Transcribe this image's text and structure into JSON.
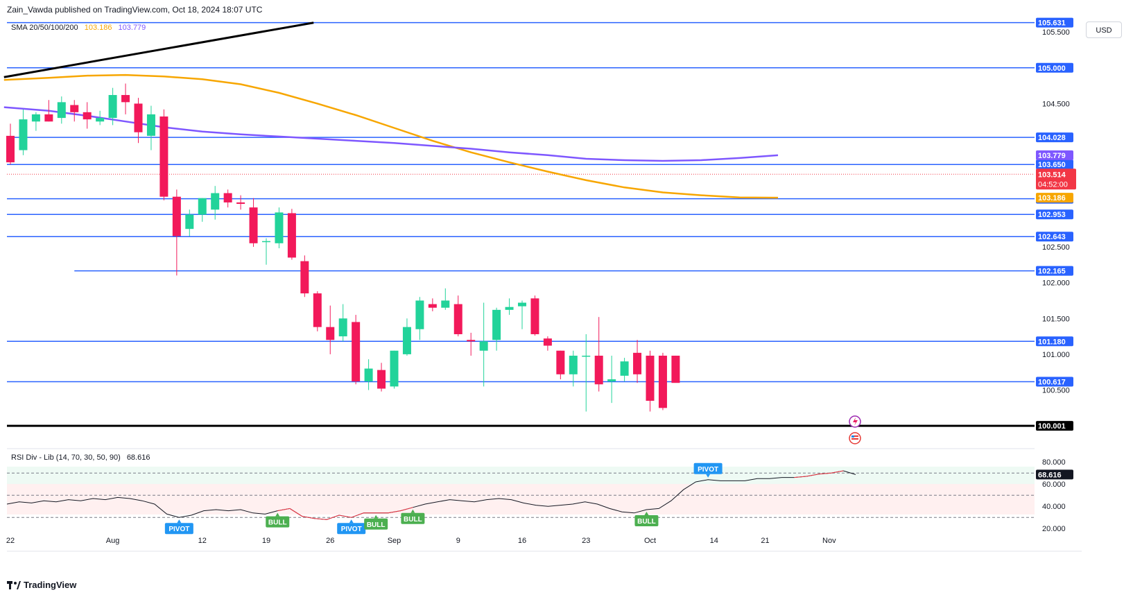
{
  "header": {
    "author": "Zain_Vawda",
    "published_text": "published on TradingView.com, Oct 18, 2024 18:07 UTC"
  },
  "currency_button": "USD",
  "sma_legend": {
    "label": "SMA 20/50/100/200",
    "value1": "103.186",
    "value2": "103.779",
    "color1": "#f7a600",
    "color2": "#7e57ff"
  },
  "rsi_legend": {
    "label": "RSI Div - Lib (14, 70, 30, 50, 90)",
    "value": "68.616"
  },
  "footer": {
    "brand": "TradingView"
  },
  "chart_data": [
    {
      "type": "candlestick",
      "title": "",
      "ylim": [
        99.75,
        105.85
      ],
      "x_tick_labels": [
        {
          "i": 0,
          "label": "22"
        },
        {
          "i": 8,
          "label": "Aug"
        },
        {
          "i": 15,
          "label": "12"
        },
        {
          "i": 20,
          "label": "19"
        },
        {
          "i": 25,
          "label": "26"
        },
        {
          "i": 30,
          "label": "Sep"
        },
        {
          "i": 35,
          "label": "9"
        },
        {
          "i": 40,
          "label": "16"
        },
        {
          "i": 45,
          "label": "23"
        },
        {
          "i": 50,
          "label": "Oct"
        },
        {
          "i": 55,
          "label": "14"
        },
        {
          "i": 59,
          "label": "21"
        },
        {
          "i": 64,
          "label": "Nov"
        }
      ],
      "y_tick_labels": [
        "105.500",
        "104.500",
        "102.500",
        "102.000",
        "101.500",
        "101.000",
        "100.500"
      ],
      "y_ticks": [
        105.5,
        104.5,
        102.5,
        102.0,
        101.5,
        101.0,
        100.5
      ],
      "horizontal_levels": [
        {
          "price": 105.631,
          "label": "105.631"
        },
        {
          "price": 105.0,
          "label": "105.000"
        },
        {
          "price": 104.028,
          "label": "104.028"
        },
        {
          "price": 103.65,
          "label": "103.650"
        },
        {
          "price": 103.172,
          "label": "103.172"
        },
        {
          "price": 102.953,
          "label": "102.953"
        },
        {
          "price": 102.643,
          "label": "102.643"
        },
        {
          "price": 102.165,
          "label": "102.165",
          "start_i": 5
        },
        {
          "price": 101.18,
          "label": "101.180"
        },
        {
          "price": 100.617,
          "label": "100.617"
        },
        {
          "price": 100.001,
          "label": "100.001",
          "heavy": true
        }
      ],
      "current_price": {
        "price": 103.514,
        "label": "103.514",
        "countdown": "04:52:00",
        "color": "#f23645"
      },
      "sma_labels": [
        {
          "price": 103.779,
          "label": "103.779",
          "color": "#7e57ff"
        },
        {
          "price": 103.186,
          "label": "103.186",
          "color": "#f7a600"
        }
      ],
      "trendline": {
        "from": [
          -0.5,
          104.87
        ],
        "to": [
          23.7,
          105.63
        ],
        "color": "#000000"
      },
      "sma_purple": [
        [
          -0.5,
          104.45
        ],
        [
          3,
          104.4
        ],
        [
          6,
          104.33
        ],
        [
          9,
          104.25
        ],
        [
          12,
          104.17
        ],
        [
          15,
          104.11
        ],
        [
          18,
          104.07
        ],
        [
          21,
          104.04
        ],
        [
          24,
          104.01
        ],
        [
          27,
          103.98
        ],
        [
          30,
          103.95
        ],
        [
          33,
          103.91
        ],
        [
          36,
          103.87
        ],
        [
          39,
          103.82
        ],
        [
          42,
          103.78
        ],
        [
          45,
          103.73
        ],
        [
          48,
          103.71
        ],
        [
          51,
          103.7
        ],
        [
          54,
          103.71
        ],
        [
          57,
          103.74
        ],
        [
          60,
          103.779
        ]
      ],
      "sma_orange": [
        [
          -0.5,
          104.83
        ],
        [
          3,
          104.86
        ],
        [
          6,
          104.89
        ],
        [
          9,
          104.9
        ],
        [
          12,
          104.88
        ],
        [
          15,
          104.84
        ],
        [
          18,
          104.77
        ],
        [
          21,
          104.65
        ],
        [
          24,
          104.5
        ],
        [
          27,
          104.34
        ],
        [
          30,
          104.16
        ],
        [
          33,
          103.98
        ],
        [
          36,
          103.82
        ],
        [
          39,
          103.68
        ],
        [
          42,
          103.55
        ],
        [
          45,
          103.43
        ],
        [
          48,
          103.33
        ],
        [
          51,
          103.26
        ],
        [
          54,
          103.22
        ],
        [
          57,
          103.19
        ],
        [
          60,
          103.186
        ]
      ],
      "candles": [
        [
          104.05,
          104.22,
          103.65,
          103.68
        ],
        [
          103.85,
          104.42,
          103.78,
          104.28
        ],
        [
          104.25,
          104.38,
          104.12,
          104.35
        ],
        [
          104.35,
          104.55,
          104.25,
          104.25
        ],
        [
          104.3,
          104.6,
          104.22,
          104.52
        ],
        [
          104.48,
          104.55,
          104.25,
          104.38
        ],
        [
          104.38,
          104.52,
          104.15,
          104.28
        ],
        [
          104.25,
          104.4,
          104.2,
          104.3
        ],
        [
          104.3,
          104.72,
          104.2,
          104.62
        ],
        [
          104.62,
          104.78,
          104.35,
          104.52
        ],
        [
          104.5,
          104.58,
          103.95,
          104.1
        ],
        [
          104.05,
          104.47,
          103.85,
          104.35
        ],
        [
          104.32,
          104.42,
          103.15,
          103.2
        ],
        [
          103.2,
          103.3,
          102.1,
          102.65
        ],
        [
          102.75,
          103.02,
          102.65,
          102.95
        ],
        [
          102.95,
          103.18,
          102.85,
          103.18
        ],
        [
          103.02,
          103.35,
          102.88,
          103.25
        ],
        [
          103.25,
          103.3,
          103.05,
          103.12
        ],
        [
          103.12,
          103.22,
          103.02,
          103.1
        ],
        [
          103.05,
          103.18,
          102.5,
          102.55
        ],
        [
          102.58,
          102.62,
          102.25,
          102.58
        ],
        [
          102.55,
          103.05,
          102.48,
          102.98
        ],
        [
          102.97,
          103.03,
          102.32,
          102.35
        ],
        [
          102.3,
          102.38,
          101.8,
          101.85
        ],
        [
          101.85,
          101.88,
          101.32,
          101.38
        ],
        [
          101.38,
          101.68,
          101.0,
          101.2
        ],
        [
          101.25,
          101.7,
          101.18,
          101.5
        ],
        [
          101.45,
          101.55,
          100.58,
          100.62
        ],
        [
          100.62,
          100.93,
          100.5,
          100.8
        ],
        [
          100.78,
          100.88,
          100.48,
          100.52
        ],
        [
          100.55,
          101.05,
          100.52,
          101.05
        ],
        [
          101.0,
          101.5,
          100.98,
          101.38
        ],
        [
          101.35,
          101.8,
          101.2,
          101.75
        ],
        [
          101.7,
          101.78,
          101.6,
          101.65
        ],
        [
          101.65,
          101.92,
          101.62,
          101.75
        ],
        [
          101.7,
          101.82,
          101.25,
          101.28
        ],
        [
          101.2,
          101.3,
          100.98,
          101.18
        ],
        [
          101.05,
          101.72,
          100.55,
          101.18
        ],
        [
          101.2,
          101.65,
          101.05,
          101.62
        ],
        [
          101.62,
          101.78,
          101.55,
          101.66
        ],
        [
          101.67,
          101.75,
          101.35,
          101.72
        ],
        [
          101.78,
          101.82,
          101.26,
          101.28
        ],
        [
          101.22,
          101.25,
          101.05,
          101.12
        ],
        [
          101.05,
          101.05,
          100.65,
          100.72
        ],
        [
          100.72,
          101.05,
          100.55,
          100.98
        ],
        [
          100.98,
          101.28,
          100.2,
          100.98
        ],
        [
          100.98,
          101.52,
          100.48,
          100.58
        ],
        [
          100.62,
          100.98,
          100.32,
          100.65
        ],
        [
          100.7,
          100.95,
          100.62,
          100.9
        ],
        [
          101.02,
          101.2,
          100.6,
          100.72
        ],
        [
          100.98,
          101.05,
          100.2,
          100.35
        ],
        [
          100.98,
          101.02,
          100.22,
          100.25
        ],
        [
          100.98,
          100.98,
          100.62,
          100.6
        ]
      ]
    },
    {
      "type": "line",
      "title": "RSI",
      "ylim": [
        12.0,
        87.0
      ],
      "y_tick_labels": [
        "80.000",
        "60.000",
        "40.000",
        "20.000"
      ],
      "y_ticks": [
        80.0,
        60.0,
        40.0,
        20.0
      ],
      "bands": [
        {
          "value": 70,
          "label": ""
        },
        {
          "value": 50,
          "label": ""
        },
        {
          "value": 30,
          "label": ""
        }
      ],
      "current": {
        "value": 68.616,
        "label": "68.616"
      },
      "series": [
        {
          "name": "",
          "values": [
            42,
            44,
            43,
            45,
            44,
            46,
            45,
            47,
            46,
            48,
            47,
            45,
            42,
            33,
            30,
            32,
            36,
            37,
            36,
            37,
            34,
            33,
            36,
            38,
            31,
            29,
            28,
            32,
            30,
            34,
            34,
            34,
            36,
            39,
            42,
            44,
            46,
            45,
            44,
            46,
            47,
            46,
            43,
            41,
            40,
            41,
            42,
            44,
            42,
            38,
            35,
            34,
            37,
            38,
            45,
            55,
            62,
            64,
            63,
            63,
            63,
            65,
            65,
            66,
            66,
            67,
            69,
            70,
            72,
            68.6
          ]
        }
      ],
      "signals": [
        {
          "i": 14,
          "label": "PIVOT",
          "kind": "pivot",
          "position": "below"
        },
        {
          "i": 22,
          "label": "BULL",
          "kind": "bull",
          "position": "below"
        },
        {
          "i": 28,
          "label": "PIVOT",
          "kind": "pivot",
          "position": "below"
        },
        {
          "i": 30,
          "label": "BULL",
          "kind": "bull",
          "position": "below"
        },
        {
          "i": 33,
          "label": "BULL",
          "kind": "bull",
          "position": "below"
        },
        {
          "i": 52,
          "label": "BULL",
          "kind": "bull",
          "position": "below"
        },
        {
          "i": 57,
          "label": "PIVOT",
          "kind": "pivot",
          "position": "above"
        }
      ]
    }
  ]
}
